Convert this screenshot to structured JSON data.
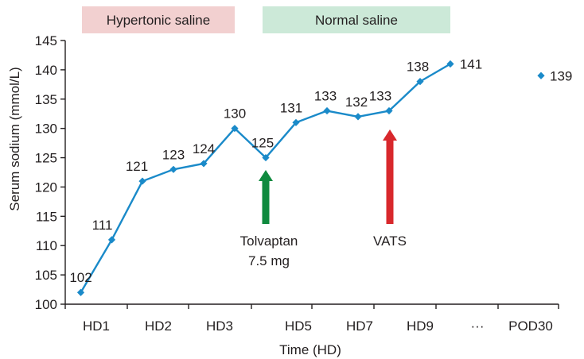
{
  "chart_data": {
    "type": "line",
    "title": "",
    "xlabel": "Time (HD)",
    "ylabel": "Serum sodium (mmol/L)",
    "ylim": [
      100,
      145
    ],
    "yticks": [
      100,
      105,
      110,
      115,
      120,
      125,
      130,
      135,
      140,
      145
    ],
    "x_tick_labels": [
      "HD1",
      "HD2",
      "HD3",
      "HD5",
      "HD7",
      "HD9",
      "···",
      "POD30"
    ],
    "series": [
      {
        "name": "Serum sodium",
        "color": "#1a8ac9",
        "values": [
          102,
          111,
          121,
          123,
          124,
          130,
          125,
          131,
          133,
          132,
          133,
          138,
          141
        ],
        "labels": [
          "102",
          "111",
          "121",
          "123",
          "124",
          "130",
          "125",
          "131",
          "133",
          "132",
          "133",
          "138",
          "141"
        ]
      }
    ],
    "extra_point": {
      "x_label": "POD30",
      "value": 139,
      "label": "139"
    },
    "bands": [
      {
        "label": "Hypertonic saline",
        "color": "#f2d0d0"
      },
      {
        "label": "Normal saline",
        "color": "#cce9d8"
      }
    ],
    "annotations": [
      {
        "lines": [
          "Tolvaptan",
          "7.5 mg"
        ],
        "arrow_color": "#0f8a3e"
      },
      {
        "lines": [
          "VATS"
        ],
        "arrow_color": "#d8282c"
      }
    ]
  }
}
